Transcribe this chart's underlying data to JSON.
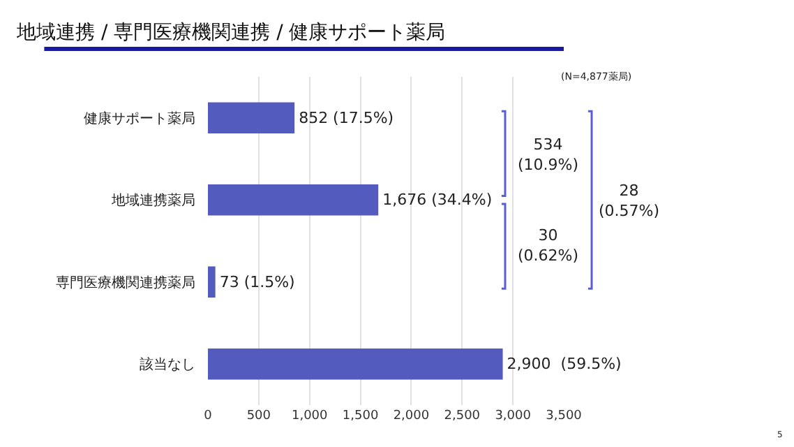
{
  "chart_data": {
    "type": "bar",
    "orientation": "horizontal",
    "title": "地域連携 / 専門医療機関連携 / 健康サポート薬局",
    "categories": [
      "健康サポート薬局",
      "地域連携薬局",
      "専門医療機関連携薬局",
      "該当なし"
    ],
    "values": [
      852,
      1676,
      73,
      2900
    ],
    "color": "#545bbf",
    "value_labels": [
      "852 (17.5%)",
      "1,676 (34.4%)",
      "73 (1.5%)",
      "2,900  (59.5%)"
    ],
    "xlim": [
      0,
      3500
    ],
    "xticks": [
      0,
      {
        "value": 500,
        "label": "500"
      },
      {
        "value": 1000,
        "label": "1,000"
      },
      {
        "value": 1500,
        "label": "1,500"
      },
      {
        "value": 2000,
        "label": "2,000"
      },
      {
        "value": 2500,
        "label": "2,500"
      },
      {
        "value": 3000,
        "label": "3,000"
      },
      {
        "value": 3500,
        "label": "3,500"
      }
    ],
    "grid": "x",
    "legend": false,
    "annotations": [
      "(N=4,877薬局)",
      "534\n(10.9%)",
      "30\n(0.62%)",
      "28\n(0.57%)",
      "5"
    ]
  }
}
